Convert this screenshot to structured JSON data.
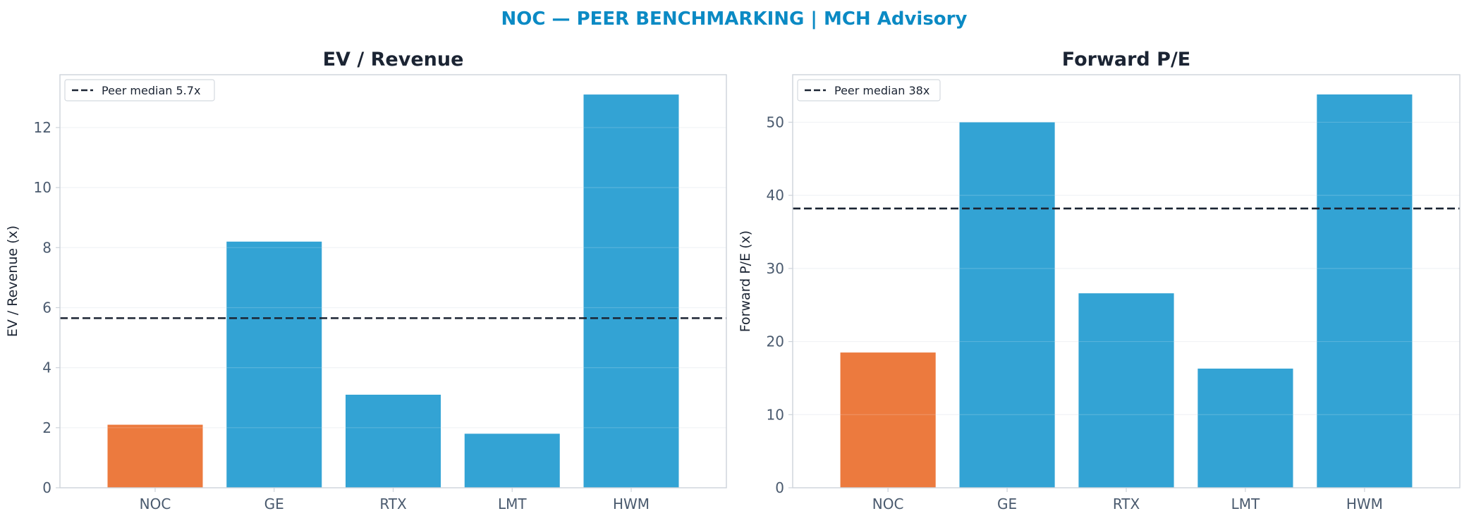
{
  "title": "NOC — PEER BENCHMARKING | MCH Advisory",
  "colors": {
    "title": "#0b8ac4",
    "highlight_bar": "#ec7a3e",
    "peer_bar": "#33a3d4",
    "median_line": "#1b2433",
    "axis_title": "#1b2433",
    "tick_text": "#4a5a6e",
    "spine": "#cdd3da",
    "grid": "#eef1f4"
  },
  "chart_data": [
    {
      "type": "bar",
      "title": "EV / Revenue",
      "ylabel": "EV / Revenue (x)",
      "categories": [
        "NOC",
        "GE",
        "RTX",
        "LMT",
        "HWM"
      ],
      "values": [
        2.1,
        8.2,
        3.1,
        1.8,
        13.1
      ],
      "highlight": "NOC",
      "ylim": [
        0,
        13.76
      ],
      "yticks": [
        0,
        2,
        4,
        6,
        8,
        10,
        12
      ],
      "reference_line": {
        "value": 5.65,
        "style": "dashed",
        "label": "Peer median 5.7x"
      },
      "legend": "top-left",
      "grid": "horizontal"
    },
    {
      "type": "bar",
      "title": "Forward P/E",
      "ylabel": "Forward P/E (x)",
      "categories": [
        "NOC",
        "GE",
        "RTX",
        "LMT",
        "HWM"
      ],
      "values": [
        18.5,
        50.0,
        26.6,
        16.3,
        53.8
      ],
      "highlight": "NOC",
      "ylim": [
        0,
        56.5
      ],
      "yticks": [
        0,
        10,
        20,
        30,
        40,
        50
      ],
      "reference_line": {
        "value": 38.2,
        "style": "dashed",
        "label": "Peer median 38x"
      },
      "legend": "top-left",
      "grid": "horizontal"
    }
  ]
}
